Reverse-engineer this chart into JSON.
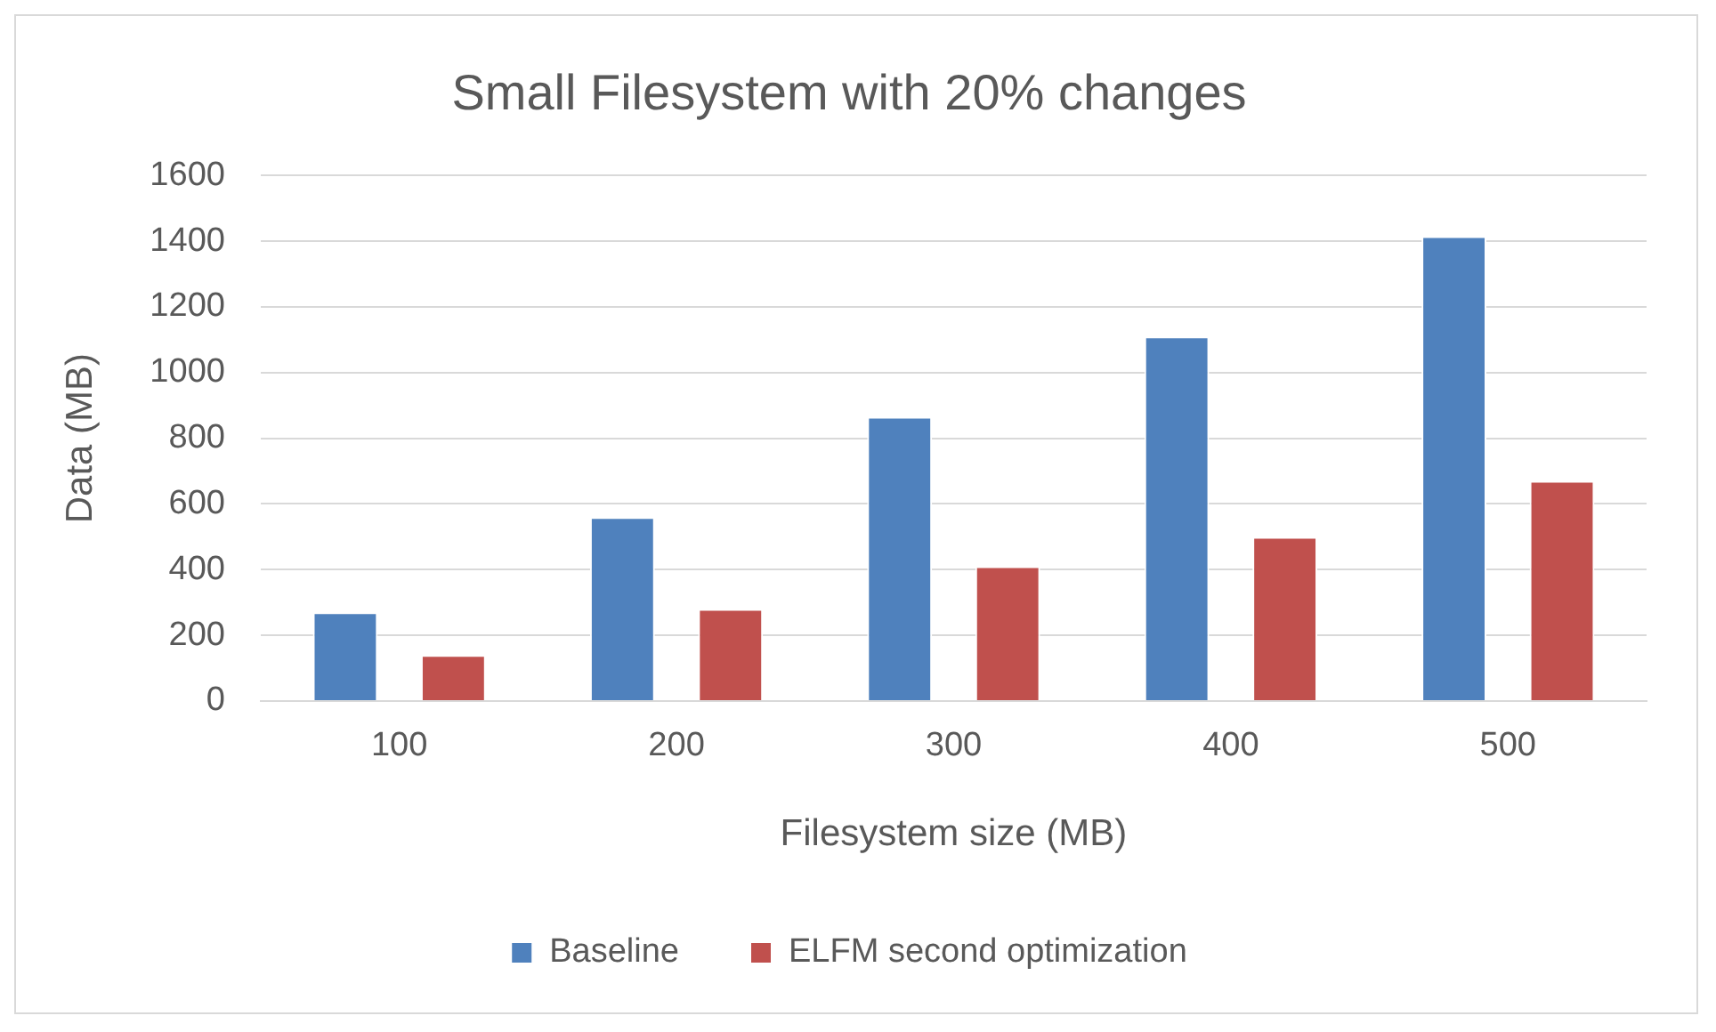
{
  "chart_data": {
    "type": "bar",
    "title": "Small Filesystem with 20% changes",
    "xlabel": "Filesystem size (MB)",
    "ylabel": "Data (MB)",
    "categories": [
      "100",
      "200",
      "300",
      "400",
      "500"
    ],
    "series": [
      {
        "name": "Baseline",
        "color": "#4f81bd",
        "values": [
          270,
          560,
          865,
          1110,
          1415
        ]
      },
      {
        "name": "ELFM second optimization",
        "color": "#c0504d",
        "values": [
          140,
          280,
          410,
          500,
          670
        ]
      }
    ],
    "ylim": [
      0,
      1600
    ],
    "yticks": [
      0,
      200,
      400,
      600,
      800,
      1000,
      1200,
      1400,
      1600
    ],
    "grid": "y",
    "legend": "bottom"
  }
}
